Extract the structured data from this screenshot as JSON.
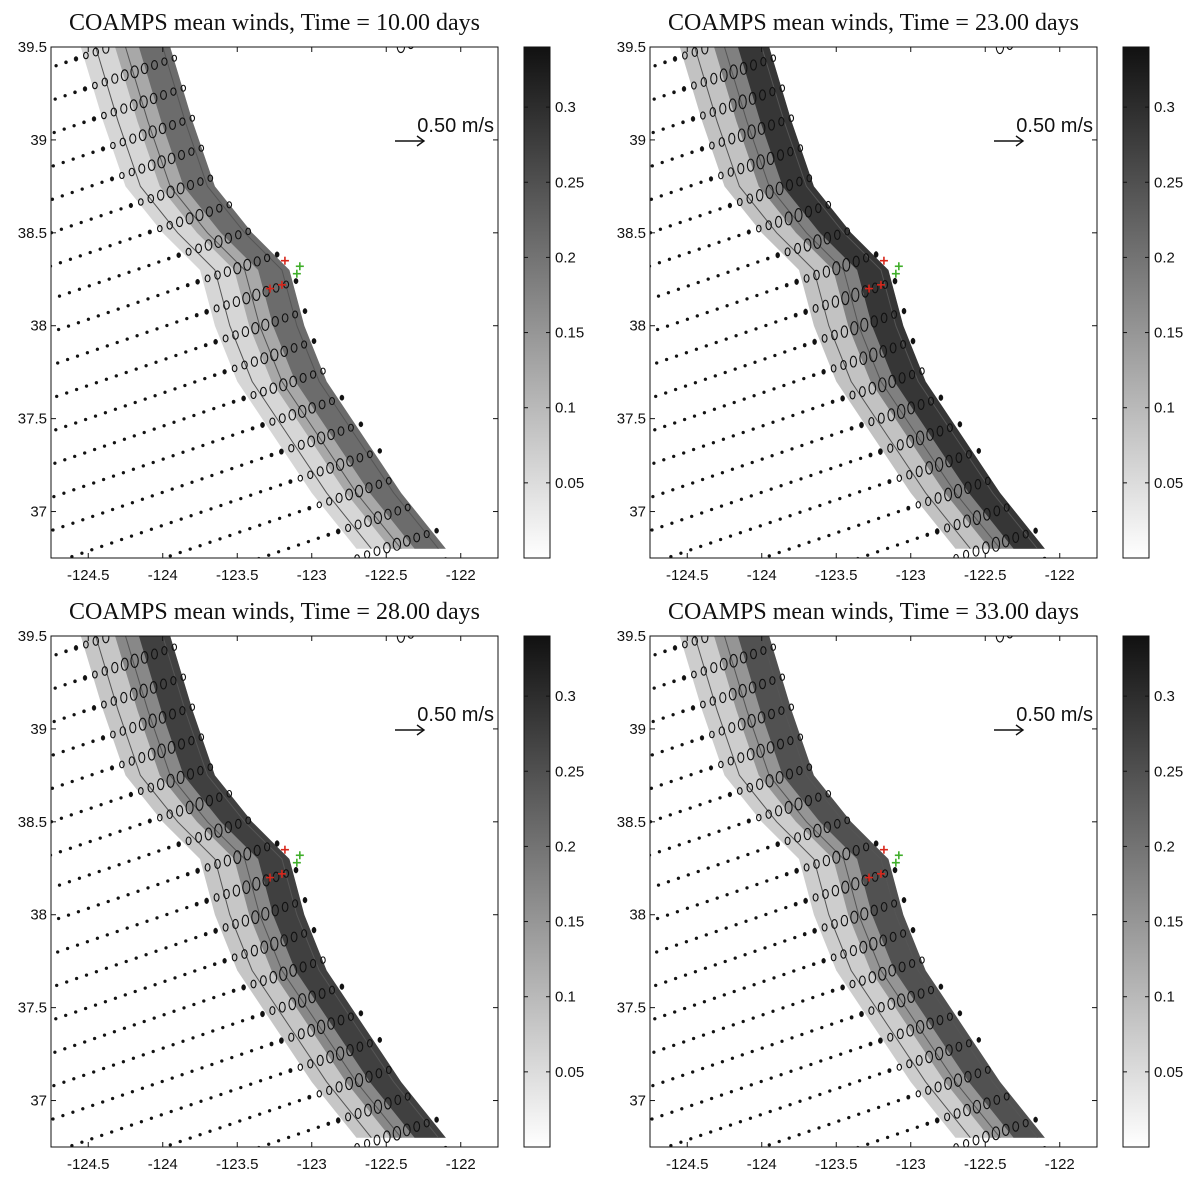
{
  "chart_data": [
    {
      "type": "vector-field",
      "title": "COAMPS mean winds, Time = 10.00 days",
      "xlim": [
        -124.75,
        -121.75
      ],
      "ylim": [
        36.75,
        39.5
      ],
      "xticks": [
        -124.5,
        -124,
        -123.5,
        -123,
        -122.5,
        -122
      ],
      "xtick_labels": [
        "-124.5",
        "-124",
        "-123.5",
        "-123",
        "-122.5",
        "-122"
      ],
      "yticks": [
        37,
        37.5,
        38,
        38.5,
        39,
        39.5
      ],
      "ytick_labels": [
        "37",
        "37.5",
        "38",
        "38.5",
        "39",
        "39.5"
      ],
      "colorbar": {
        "range": [
          0,
          0.34
        ],
        "ticks": [
          0.05,
          0.1,
          0.15,
          0.2,
          0.25,
          0.3
        ],
        "tick_labels": [
          "0.05",
          "0.1",
          "0.15",
          "0.2",
          "0.25",
          "0.3"
        ]
      },
      "scale_vector": {
        "label": "0.50 m/s",
        "value": 0.5
      },
      "intensity": 0.55
    },
    {
      "type": "vector-field",
      "title": "COAMPS mean winds, Time = 23.00 days",
      "xlim": [
        -124.75,
        -121.75
      ],
      "ylim": [
        36.75,
        39.5
      ],
      "xticks": [
        -124.5,
        -124,
        -123.5,
        -123,
        -122.5,
        -122
      ],
      "xtick_labels": [
        "-124.5",
        "-124",
        "-123.5",
        "-123",
        "-122.5",
        "-122"
      ],
      "yticks": [
        37,
        37.5,
        38,
        38.5,
        39,
        39.5
      ],
      "ytick_labels": [
        "37",
        "37.5",
        "38",
        "38.5",
        "39",
        "39.5"
      ],
      "colorbar": {
        "range": [
          0,
          0.34
        ],
        "ticks": [
          0.05,
          0.1,
          0.15,
          0.2,
          0.25,
          0.3
        ],
        "tick_labels": [
          "0.05",
          "0.1",
          "0.15",
          "0.2",
          "0.25",
          "0.3"
        ]
      },
      "scale_vector": {
        "label": "0.50 m/s",
        "value": 0.5
      },
      "intensity": 1.0
    },
    {
      "type": "vector-field",
      "title": "COAMPS mean winds, Time = 28.00 days",
      "xlim": [
        -124.75,
        -121.75
      ],
      "ylim": [
        36.75,
        39.5
      ],
      "xticks": [
        -124.5,
        -124,
        -123.5,
        -123,
        -122.5,
        -122
      ],
      "xtick_labels": [
        "-124.5",
        "-124",
        "-123.5",
        "-123",
        "-122.5",
        "-122"
      ],
      "yticks": [
        37,
        37.5,
        38,
        38.5,
        39,
        39.5
      ],
      "ytick_labels": [
        "37",
        "37.5",
        "38",
        "38.5",
        "39",
        "39.5"
      ],
      "colorbar": {
        "range": [
          0,
          0.34
        ],
        "ticks": [
          0.05,
          0.1,
          0.15,
          0.2,
          0.25,
          0.3
        ],
        "tick_labels": [
          "0.05",
          "0.1",
          "0.15",
          "0.2",
          "0.25",
          "0.3"
        ]
      },
      "scale_vector": {
        "label": "0.50 m/s",
        "value": 0.5
      },
      "intensity": 0.9
    },
    {
      "type": "vector-field",
      "title": "COAMPS mean winds, Time = 33.00 days",
      "xlim": [
        -124.75,
        -121.75
      ],
      "ylim": [
        36.75,
        39.5
      ],
      "xticks": [
        -124.5,
        -124,
        -123.5,
        -123,
        -122.5,
        -122
      ],
      "xtick_labels": [
        "-124.5",
        "-124",
        "-123.5",
        "-123",
        "-122.5",
        "-122"
      ],
      "yticks": [
        37,
        37.5,
        38,
        38.5,
        39,
        39.5
      ],
      "ytick_labels": [
        "37",
        "37.5",
        "38",
        "38.5",
        "39",
        "39.5"
      ],
      "colorbar": {
        "range": [
          0,
          0.34
        ],
        "ticks": [
          0.05,
          0.1,
          0.15,
          0.2,
          0.25,
          0.3
        ],
        "tick_labels": [
          "0.05",
          "0.1",
          "0.15",
          "0.2",
          "0.25",
          "0.3"
        ]
      },
      "scale_vector": {
        "label": "0.50 m/s",
        "value": 0.5
      },
      "intensity": 0.75
    }
  ],
  "colors": {
    "axis": "#111111",
    "coast_line": "#555555",
    "marker_red": "#d8261b",
    "marker_green": "#3fae2a",
    "colormap_low": "#ffffff",
    "colormap_high": "#111111"
  }
}
